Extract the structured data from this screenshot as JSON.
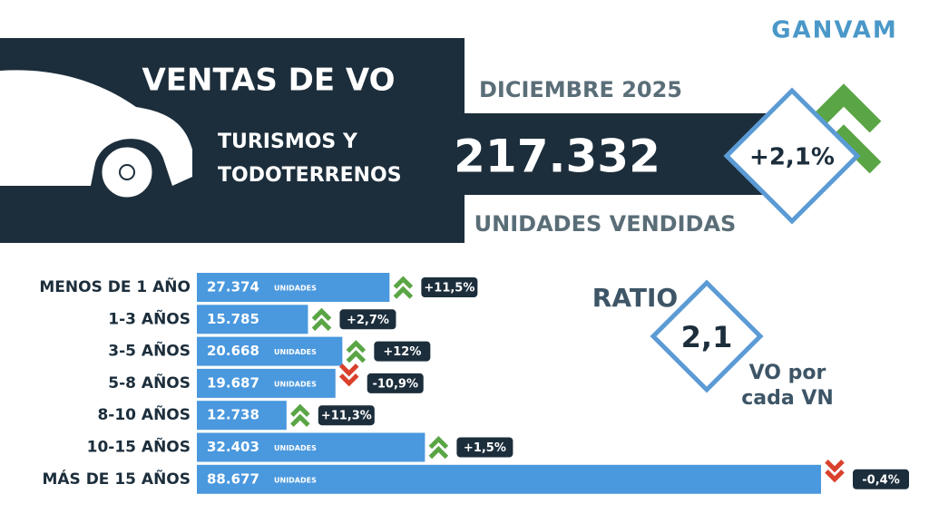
{
  "brand": "GANVAM",
  "header": {
    "title": "VENTAS DE VO",
    "period": "DICIEMBRE 2025",
    "segment": [
      "TURISMOS Y",
      "TODOTERRENOS"
    ],
    "total": "217.332",
    "total_label": "UNIDADES VENDIDAS",
    "change": "+2,1%"
  },
  "ratio": {
    "title": "RATIO",
    "value": "2,1",
    "caption": [
      "VO por",
      "cada VN"
    ]
  },
  "chart_data": {
    "type": "bar",
    "orientation": "horizontal",
    "color": "#4a98de",
    "categories": [
      "MENOS DE 1 AÑO",
      "1-3 AÑOS",
      "3-5 AÑOS",
      "5-8 AÑOS",
      "8-10 AÑOS",
      "10-15 AÑOS",
      "MÁS DE 15 AÑOS"
    ],
    "values": [
      27374,
      15785,
      20668,
      19687,
      12738,
      32403,
      88677
    ],
    "value_labels": [
      "27.374",
      "15.785",
      "20.668",
      "19.687",
      "12.738",
      "32.403",
      "88.677"
    ],
    "unit_label": "UNIDADES",
    "changes": [
      11.5,
      2.7,
      12,
      -10.9,
      11.3,
      1.5,
      -0.4
    ],
    "change_labels": [
      "+11,5%",
      "+2,7%",
      "+12%",
      "-10,9%",
      "+11,3%",
      "+1,5%",
      "-0,4%"
    ],
    "up_color": "#5aa545",
    "down_color": "#d9412c"
  }
}
